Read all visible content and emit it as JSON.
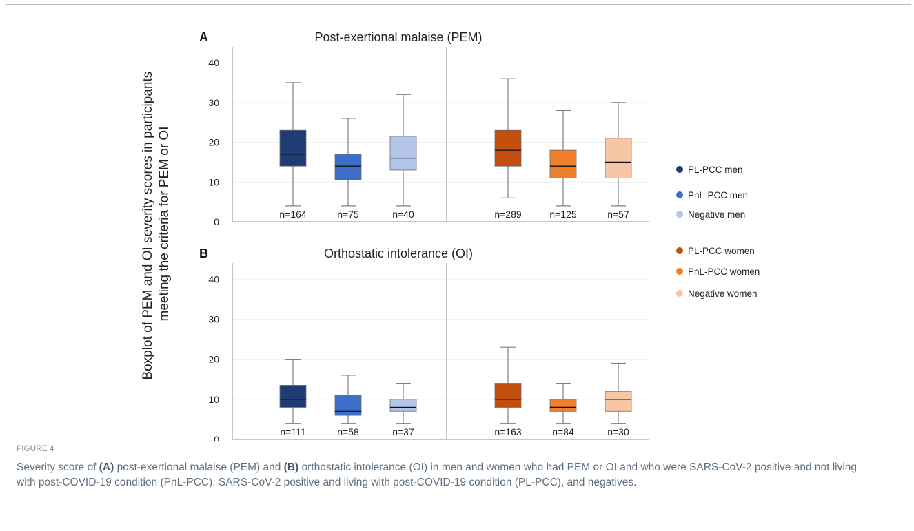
{
  "figure": {
    "y_axis_title_line1": "Boxplot of PEM and OI severity scores in participants",
    "y_axis_title_line2": "meeting the criteria for PEM or OI",
    "label": "FIGURE 4",
    "caption": {
      "part1": "Severity score of ",
      "bold_a": "(A)",
      "part2": " post-exertional malaise (PEM) and ",
      "bold_b": "(B)",
      "part3": " orthostatic intolerance (OI) in men and women who had PEM or OI and who were SARS-CoV-2 positive and not living with post-COVID-19 condition (PnL-PCC), SARS-CoV-2 positive and living with post-COVID-19 condition (PL-PCC), and negatives."
    }
  },
  "colors": {
    "pl_pcc_men": "#1f3b73",
    "pnl_pcc_men": "#3d6fca",
    "negative_men": "#b3c6ea",
    "pl_pcc_women": "#c24f0e",
    "pnl_pcc_women": "#f07f2b",
    "negative_women": "#f7c6a4"
  },
  "legend": [
    {
      "label": "PL-PCC men",
      "color": "#1f3b73"
    },
    {
      "label": "PnL-PCC men",
      "color": "#3d6fca"
    },
    {
      "label": "Negative men",
      "color": "#b3c6ea"
    },
    {
      "label": "PL-PCC women",
      "color": "#c24f0e"
    },
    {
      "label": "PnL-PCC women",
      "color": "#f07f2b"
    },
    {
      "label": "Negative women",
      "color": "#f7c6a4"
    }
  ],
  "chart_data": [
    {
      "type": "boxplot",
      "panel_letter": "A",
      "title": "Post-exertional malaise (PEM)",
      "ylim": [
        0,
        45
      ],
      "yticks": [
        0,
        10,
        20,
        30,
        40
      ],
      "grid": true,
      "groups": [
        {
          "name": "PL-PCC men",
          "color": "#1f3b73",
          "side": "men",
          "min": 4,
          "q1": 14,
          "median": 17,
          "q3": 23,
          "max": 35,
          "n_label": "n=164"
        },
        {
          "name": "PnL-PCC men",
          "color": "#3d6fca",
          "side": "men",
          "min": 4,
          "q1": 10.5,
          "median": 14,
          "q3": 17,
          "max": 26,
          "n_label": "n=75"
        },
        {
          "name": "Negative men",
          "color": "#b3c6ea",
          "side": "men",
          "min": 4,
          "q1": 13,
          "median": 16,
          "q3": 21.5,
          "max": 32,
          "n_label": "n=40"
        },
        {
          "name": "PL-PCC women",
          "color": "#c24f0e",
          "side": "women",
          "min": 6,
          "q1": 14,
          "median": 18,
          "q3": 23,
          "max": 36,
          "n_label": "n=289"
        },
        {
          "name": "PnL-PCC women",
          "color": "#f07f2b",
          "side": "women",
          "min": 4,
          "q1": 11,
          "median": 14,
          "q3": 18,
          "max": 28,
          "n_label": "n=125"
        },
        {
          "name": "Negative women",
          "color": "#f7c6a4",
          "side": "women",
          "min": 4,
          "q1": 11,
          "median": 15,
          "q3": 21,
          "max": 30,
          "n_label": "n=57"
        }
      ]
    },
    {
      "type": "boxplot",
      "panel_letter": "B",
      "title": "Orthostatic intolerance (OI)",
      "ylim": [
        0,
        45
      ],
      "yticks": [
        0,
        10,
        20,
        30,
        40
      ],
      "grid": true,
      "groups": [
        {
          "name": "PL-PCC men",
          "color": "#1f3b73",
          "side": "men",
          "min": 4,
          "q1": 8,
          "median": 10,
          "q3": 13.5,
          "max": 20,
          "n_label": "n=111"
        },
        {
          "name": "PnL-PCC men",
          "color": "#3d6fca",
          "side": "men",
          "min": 4,
          "q1": 6,
          "median": 7,
          "q3": 11,
          "max": 16,
          "n_label": "n=58"
        },
        {
          "name": "Negative men",
          "color": "#b3c6ea",
          "side": "men",
          "min": 4,
          "q1": 7,
          "median": 8,
          "q3": 10,
          "max": 14,
          "n_label": "n=37"
        },
        {
          "name": "PL-PCC women",
          "color": "#c24f0e",
          "side": "women",
          "min": 4,
          "q1": 8,
          "median": 10,
          "q3": 14,
          "max": 23,
          "n_label": "n=163"
        },
        {
          "name": "PnL-PCC women",
          "color": "#f07f2b",
          "side": "women",
          "min": 4,
          "q1": 7,
          "median": 8,
          "q3": 10,
          "max": 14,
          "n_label": "n=84"
        },
        {
          "name": "Negative women",
          "color": "#f7c6a4",
          "side": "women",
          "min": 4,
          "q1": 7,
          "median": 10,
          "q3": 12,
          "max": 19,
          "n_label": "n=30"
        }
      ]
    }
  ]
}
